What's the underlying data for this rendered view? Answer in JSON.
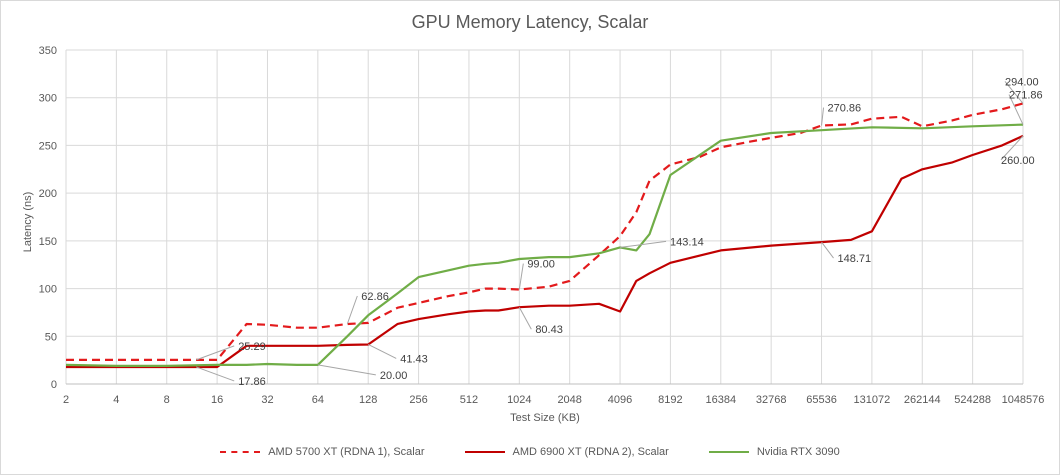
{
  "chart_data": {
    "type": "line",
    "title": "GPU Memory Latency, Scalar",
    "xlabel": "Test Size (KB)",
    "ylabel": "Latency (ns)",
    "ylim": [
      0,
      350
    ],
    "yticks": [
      "0",
      "50",
      "100",
      "150",
      "200",
      "250",
      "300",
      "350"
    ],
    "xticks": [
      "2",
      "4",
      "8",
      "16",
      "32",
      "64",
      "128",
      "256",
      "512",
      "1024",
      "2048",
      "4096",
      "8192",
      "16384",
      "32768",
      "65536",
      "131072",
      "262144",
      "524288",
      "1048576"
    ],
    "grid": true,
    "legend_position": "bottom",
    "series": [
      {
        "name": "AMD 5700 XT (RDNA 1), Scalar",
        "color": "#e31a1c",
        "dash": "dashed",
        "x": [
          2,
          4,
          8,
          12,
          16,
          24,
          32,
          48,
          64,
          96,
          128,
          192,
          256,
          384,
          512,
          640,
          768,
          1024,
          1536,
          2048,
          3072,
          4096,
          5120,
          6144,
          8192,
          12288,
          16384,
          24576,
          32768,
          49152,
          65536,
          98304,
          131072,
          196608,
          262144,
          393216,
          524288,
          786432,
          1048576
        ],
        "y": [
          25.29,
          25.29,
          25.29,
          25.29,
          25.29,
          62.86,
          62.0,
          59.0,
          59.0,
          62.86,
          64.0,
          80.0,
          85.0,
          92.0,
          96.0,
          100.0,
          100.0,
          99.0,
          102.0,
          108.0,
          135.0,
          155.0,
          180.0,
          213.0,
          230.0,
          238.0,
          248.0,
          254.0,
          258.0,
          263.0,
          270.86,
          272.0,
          278.0,
          280.0,
          270.0,
          276.0,
          282.0,
          288.0,
          294.0
        ]
      },
      {
        "name": "AMD 6900 XT (RDNA 2), Scalar",
        "color": "#c00000",
        "dash": "solid",
        "x": [
          2,
          4,
          8,
          12,
          16,
          24,
          32,
          48,
          64,
          96,
          128,
          192,
          256,
          384,
          512,
          640,
          768,
          1024,
          1536,
          2048,
          3072,
          4096,
          5120,
          6144,
          8192,
          16384,
          32768,
          65536,
          98304,
          131072,
          196608,
          262144,
          393216,
          524288,
          786432,
          1048576
        ],
        "y": [
          17.86,
          17.86,
          17.86,
          17.86,
          17.86,
          40.0,
          40.0,
          40.0,
          40.0,
          41.0,
          41.43,
          63.0,
          68.0,
          73.0,
          76.0,
          77.0,
          77.0,
          80.43,
          82.0,
          82.0,
          84.0,
          76.0,
          108.0,
          116.0,
          127.0,
          140.0,
          145.0,
          148.71,
          151.0,
          160.0,
          215.0,
          225.0,
          232.0,
          240.0,
          250.0,
          260.0
        ]
      },
      {
        "name": "Nvidia RTX 3090",
        "color": "#70ad47",
        "dash": "solid",
        "x": [
          2,
          4,
          8,
          16,
          24,
          32,
          48,
          64,
          96,
          128,
          192,
          256,
          384,
          512,
          640,
          768,
          1024,
          1536,
          2048,
          3072,
          4096,
          5120,
          6144,
          8192,
          16384,
          32768,
          65536,
          131072,
          262144,
          524288,
          1048576
        ],
        "y": [
          20.0,
          19.0,
          19.0,
          20.0,
          20.0,
          21.0,
          20.0,
          20.0,
          50.0,
          72.0,
          95.0,
          112.0,
          119.0,
          124.0,
          126.0,
          127.0,
          131.0,
          133.0,
          133.0,
          137.0,
          143.14,
          140.0,
          157.0,
          219.0,
          255.0,
          263.0,
          266.0,
          269.0,
          268.0,
          270.0,
          271.86
        ]
      }
    ],
    "data_labels": [
      {
        "text": "25.29",
        "series": 0,
        "x": 12,
        "y": 25.29
      },
      {
        "text": "62.86",
        "series": 0,
        "x": 96,
        "y": 62.86
      },
      {
        "text": "99.00",
        "series": 0,
        "x": 1024,
        "y": 99.0
      },
      {
        "text": "270.86",
        "series": 0,
        "x": 65536,
        "y": 270.86
      },
      {
        "text": "294.00",
        "series": 0,
        "x": 1048576,
        "y": 294.0
      },
      {
        "text": "17.86",
        "series": 1,
        "x": 12,
        "y": 17.86
      },
      {
        "text": "41.43",
        "series": 1,
        "x": 128,
        "y": 41.43
      },
      {
        "text": "80.43",
        "series": 1,
        "x": 1024,
        "y": 80.43
      },
      {
        "text": "148.71",
        "series": 1,
        "x": 65536,
        "y": 148.71
      },
      {
        "text": "260.00",
        "series": 1,
        "x": 1048576,
        "y": 260.0
      },
      {
        "text": "20.00",
        "series": 2,
        "x": 64,
        "y": 20.0
      },
      {
        "text": "143.14",
        "series": 2,
        "x": 4096,
        "y": 143.14
      },
      {
        "text": "271.86",
        "series": 2,
        "x": 1048576,
        "y": 271.86
      }
    ]
  }
}
